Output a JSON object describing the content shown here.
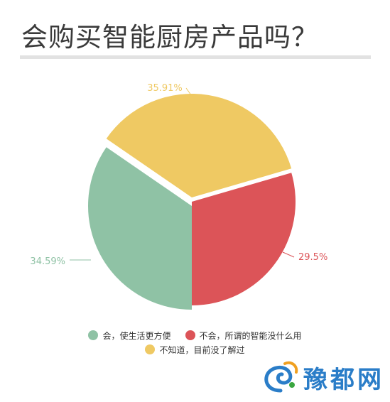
{
  "chart_data": {
    "type": "pie",
    "title": "会购买智能厨房产品吗？",
    "slices": [
      {
        "name": "会，使生活更方便",
        "value": 34.59,
        "label": "34.59%",
        "color": "#8fc2a5"
      },
      {
        "name": "不会，所谓的智能没什么用",
        "value": 29.5,
        "label": "29.5%",
        "color": "#dc5458"
      },
      {
        "name": "不知道，目前没了解过",
        "value": 35.91,
        "label": "35.91%",
        "color": "#efc963"
      }
    ],
    "legend_position": "bottom"
  },
  "watermark": {
    "text": "豫都网"
  }
}
